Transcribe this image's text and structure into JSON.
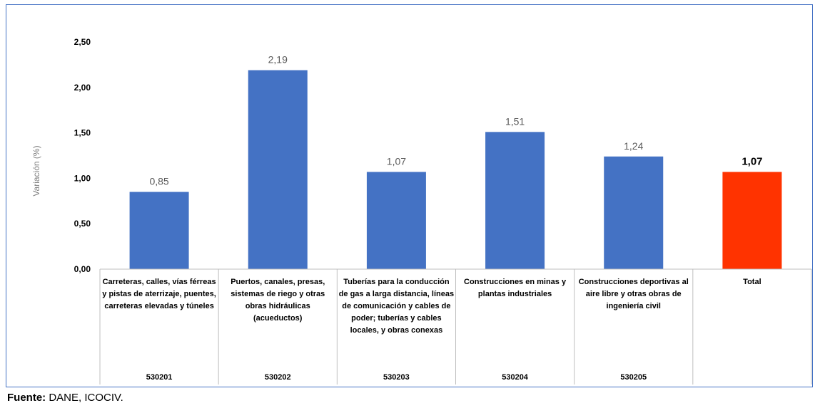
{
  "chart_data": {
    "type": "bar",
    "ylabel": "Variación (%)",
    "ylim": [
      0,
      2.5
    ],
    "yticks": [
      "0,00",
      "0,50",
      "1,00",
      "1,50",
      "2,00",
      "2,50"
    ],
    "categories": [
      "Carreteras, calles, vías férreas y pistas de aterrizaje, puentes, carreteras elevadas y túneles",
      "Puertos, canales, presas, sistemas de riego y otras obras hidráulicas (acueductos)",
      "Tuberías para la conducción de gas a larga distancia, líneas de comunicación y cables de poder; tuberías y cables locales, y obras conexas",
      "Construcciones  en minas y plantas industriales",
      "Construcciones deportivas al aire libre y otras obras de ingeniería civil",
      "Total"
    ],
    "codes": [
      "530201",
      "530202",
      "530203",
      "530204",
      "530205",
      ""
    ],
    "values": [
      0.85,
      2.19,
      1.07,
      1.51,
      1.24,
      1.07
    ],
    "value_labels": [
      "0,85",
      "2,19",
      "1,07",
      "1,51",
      "1,24",
      "1,07"
    ],
    "colors": [
      "#4472c4",
      "#4472c4",
      "#4472c4",
      "#4472c4",
      "#4472c4",
      "#ff3300"
    ],
    "grid": false,
    "legend": "none"
  },
  "source": {
    "label": "Fuente:",
    "text": "DANE, ICOCIV."
  }
}
